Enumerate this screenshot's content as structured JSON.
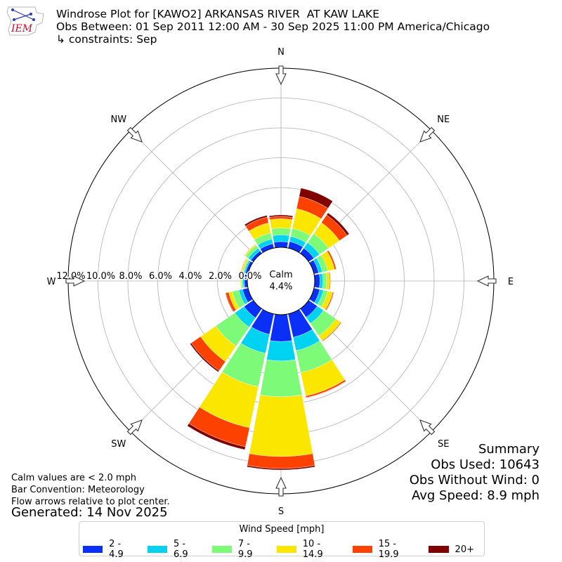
{
  "header": {
    "title_line1": "Windrose Plot for [KAWO2] ARKANSAS RIVER  AT KAW LAKE",
    "title_line2": "Obs Between: 01 Sep 2011 12:00 AM - 30 Sep 2025 11:00 PM America/Chicago",
    "title_line3": "↳ constraints: Sep",
    "logo_text": "IEM"
  },
  "chart_data": {
    "type": "windrose",
    "directions": [
      "N",
      "NNE",
      "NE",
      "ENE",
      "E",
      "ESE",
      "SE",
      "SSE",
      "S",
      "SSW",
      "SW",
      "WSW",
      "W",
      "WNW",
      "NW",
      "NNW"
    ],
    "compass_labels": [
      "N",
      "NE",
      "E",
      "SE",
      "S",
      "SW",
      "W",
      "NW"
    ],
    "radial_ticks": [
      "0.0%",
      "2.0%",
      "4.0%",
      "6.0%",
      "8.0%",
      "10.0%",
      "12.0%"
    ],
    "rmax": 12.0,
    "calm_label": "Calm",
    "calm_value": "4.4%",
    "bins": [
      "2 - 4.9",
      "5 - 6.9",
      "7 - 9.9",
      "10 - 14.9",
      "15 - 19.9",
      "20+"
    ],
    "bin_colors": [
      "#0a2ff7",
      "#00d2f2",
      "#7dfa78",
      "#fbe600",
      "#fd4200",
      "#800000"
    ],
    "frequencies": [
      [
        0.38,
        0.45,
        0.46,
        0.62,
        0.16,
        0.1
      ],
      [
        0.45,
        0.35,
        0.55,
        1.35,
        0.84,
        0.57
      ],
      [
        0.42,
        0.45,
        0.73,
        0.9,
        0.62,
        0.17
      ],
      [
        0.32,
        0.25,
        0.37,
        0.47,
        0.11,
        0.02
      ],
      [
        0.35,
        0.2,
        0.25,
        0.21,
        0.05,
        0.0
      ],
      [
        0.4,
        0.25,
        0.3,
        0.33,
        0.07,
        0.02
      ],
      [
        0.7,
        0.5,
        1.0,
        0.4,
        0.05,
        0.0
      ],
      [
        1.6,
        0.92,
        1.5,
        1.6,
        0.12,
        0.02
      ],
      [
        1.8,
        1.3,
        2.4,
        4.0,
        0.8,
        0.1
      ],
      [
        1.4,
        1.3,
        2.3,
        2.8,
        1.3,
        0.2
      ],
      [
        0.75,
        0.75,
        1.55,
        1.25,
        0.75,
        0.1
      ],
      [
        0.38,
        0.25,
        0.45,
        0.25,
        0.2,
        0.03
      ],
      [
        0.2,
        0.1,
        0.1,
        0.06,
        0.0,
        0.0
      ],
      [
        0.18,
        0.1,
        0.1,
        0.1,
        0.03,
        0.0
      ],
      [
        0.2,
        0.22,
        0.22,
        0.08,
        0.02,
        0.0
      ],
      [
        0.3,
        0.32,
        0.42,
        0.68,
        0.4,
        0.12
      ]
    ]
  },
  "notes": {
    "calm": "Calm values are < 2.0 mph",
    "convention": "Bar Convention: Meteorology",
    "flow": "Flow arrows relative to plot center.",
    "generated": "Generated: 14 Nov 2025"
  },
  "summary": {
    "heading": "Summary",
    "obs_used": "Obs Used: 10643",
    "obs_without_wind": "Obs Without Wind: 0",
    "avg_speed": "Avg Speed: 8.9 mph"
  },
  "legend": {
    "title": "Wind Speed [mph]"
  }
}
